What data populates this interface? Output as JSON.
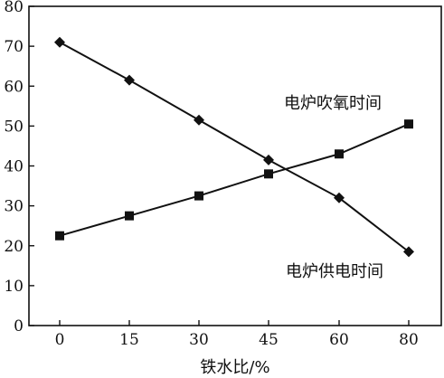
{
  "chart_data": {
    "type": "line",
    "x": [
      0,
      15,
      30,
      45,
      60,
      80
    ],
    "x_tick_labels": [
      "0",
      "15",
      "30",
      "45",
      "60",
      "80"
    ],
    "y_ticks": [
      0,
      10,
      20,
      30,
      40,
      50,
      60,
      70,
      80
    ],
    "y_tick_labels": [
      "0",
      "10",
      "20",
      "30",
      "40",
      "50",
      "60",
      "70",
      "80"
    ],
    "ylim": [
      0,
      80
    ],
    "xlabel": "铁水比/%",
    "ylabel": "",
    "title": "",
    "grid": false,
    "series": [
      {
        "name": "电炉吹氧时间",
        "marker": "square",
        "values": [
          22.5,
          27.5,
          32.5,
          38,
          43,
          50.5
        ]
      },
      {
        "name": "电炉供电时间",
        "marker": "diamond",
        "values": [
          71,
          61.5,
          51.5,
          41.5,
          32,
          18.5
        ]
      }
    ]
  }
}
